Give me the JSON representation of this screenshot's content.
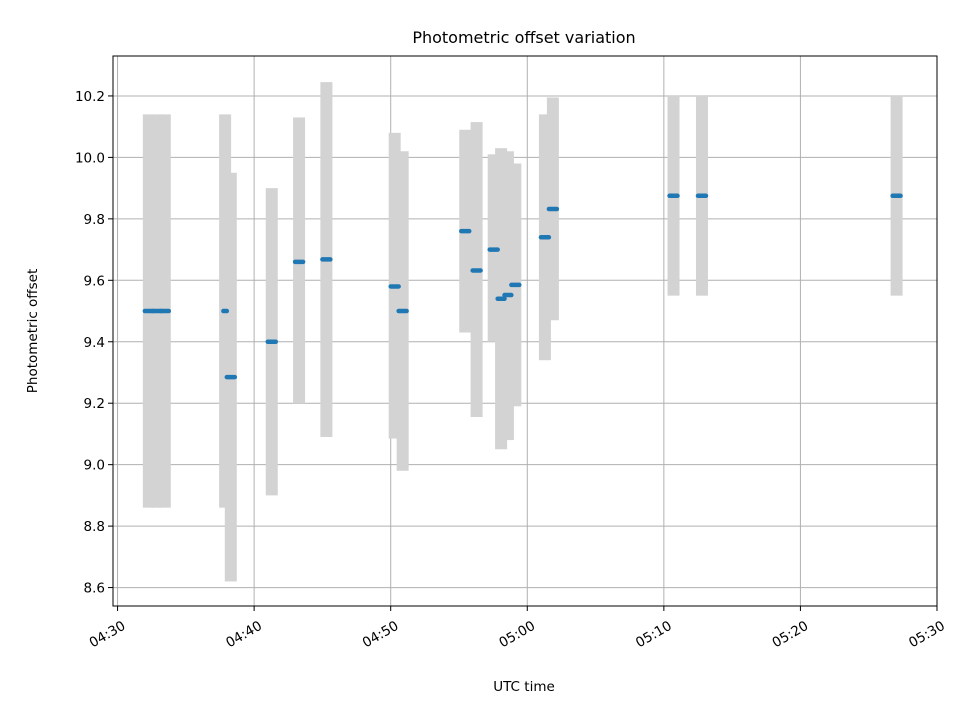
{
  "chart_data": {
    "type": "scatter",
    "title": "Photometric offset variation",
    "xlabel": "UTC time",
    "ylabel": "Photometric offset",
    "grid": true,
    "xlim": [
      "04:29:40",
      "05:30:00"
    ],
    "ylim": [
      8.54,
      10.33
    ],
    "x_ticks": [
      "04:30",
      "04:40",
      "04:50",
      "05:00",
      "05:10",
      "05:20",
      "05:30"
    ],
    "y_ticks": [
      "8.6",
      "8.8",
      "9.0",
      "9.2",
      "9.4",
      "9.6",
      "9.8",
      "10.0",
      "10.2"
    ],
    "colors": {
      "marker": "#1f77b4",
      "error_bar": "#d3d3d3",
      "grid": "#b0b0b0"
    },
    "series": [
      {
        "points": [
          {
            "t_start": "04:32:00",
            "t_end": "04:32:35",
            "y": 9.5,
            "err_low": 8.86,
            "err_high": 10.14
          },
          {
            "t_start": "04:32:35",
            "t_end": "04:33:10",
            "y": 9.5,
            "err_low": 8.86,
            "err_high": 10.14
          },
          {
            "t_start": "04:33:10",
            "t_end": "04:33:45",
            "y": 9.5,
            "err_low": 8.86,
            "err_high": 10.14
          },
          {
            "t_start": "04:37:45",
            "t_end": "04:38:00",
            "y": 9.5,
            "err_low": 8.86,
            "err_high": 10.14
          },
          {
            "t_start": "04:38:00",
            "t_end": "04:38:35",
            "y": 9.285,
            "err_low": 8.62,
            "err_high": 9.95
          },
          {
            "t_start": "04:41:00",
            "t_end": "04:41:35",
            "y": 9.4,
            "err_low": 8.9,
            "err_high": 9.9
          },
          {
            "t_start": "04:43:00",
            "t_end": "04:43:35",
            "y": 9.66,
            "err_low": 9.2,
            "err_high": 10.13
          },
          {
            "t_start": "04:45:00",
            "t_end": "04:45:35",
            "y": 9.668,
            "err_low": 9.09,
            "err_high": 10.245
          },
          {
            "t_start": "04:50:00",
            "t_end": "04:50:35",
            "y": 9.58,
            "err_low": 9.085,
            "err_high": 10.08
          },
          {
            "t_start": "04:50:35",
            "t_end": "04:51:10",
            "y": 9.5,
            "err_low": 8.98,
            "err_high": 10.02
          },
          {
            "t_start": "04:55:10",
            "t_end": "04:55:45",
            "y": 9.76,
            "err_low": 9.43,
            "err_high": 10.09
          },
          {
            "t_start": "04:56:00",
            "t_end": "04:56:35",
            "y": 9.632,
            "err_low": 9.155,
            "err_high": 10.115
          },
          {
            "t_start": "04:57:15",
            "t_end": "04:57:50",
            "y": 9.7,
            "err_low": 9.4,
            "err_high": 10.01
          },
          {
            "t_start": "04:57:50",
            "t_end": "04:58:20",
            "y": 9.54,
            "err_low": 9.05,
            "err_high": 10.03
          },
          {
            "t_start": "04:58:20",
            "t_end": "04:58:50",
            "y": 9.552,
            "err_low": 9.08,
            "err_high": 10.02
          },
          {
            "t_start": "04:58:50",
            "t_end": "04:59:25",
            "y": 9.585,
            "err_low": 9.19,
            "err_high": 9.98
          },
          {
            "t_start": "05:01:00",
            "t_end": "05:01:35",
            "y": 9.74,
            "err_low": 9.34,
            "err_high": 10.14
          },
          {
            "t_start": "05:01:35",
            "t_end": "05:02:10",
            "y": 9.832,
            "err_low": 9.47,
            "err_high": 10.195
          },
          {
            "t_start": "05:10:25",
            "t_end": "05:11:00",
            "y": 9.875,
            "err_low": 9.55,
            "err_high": 10.2
          },
          {
            "t_start": "05:12:30",
            "t_end": "05:13:05",
            "y": 9.875,
            "err_low": 9.55,
            "err_high": 10.2
          },
          {
            "t_start": "05:26:45",
            "t_end": "05:27:20",
            "y": 9.875,
            "err_low": 9.55,
            "err_high": 10.2
          }
        ]
      }
    ]
  }
}
